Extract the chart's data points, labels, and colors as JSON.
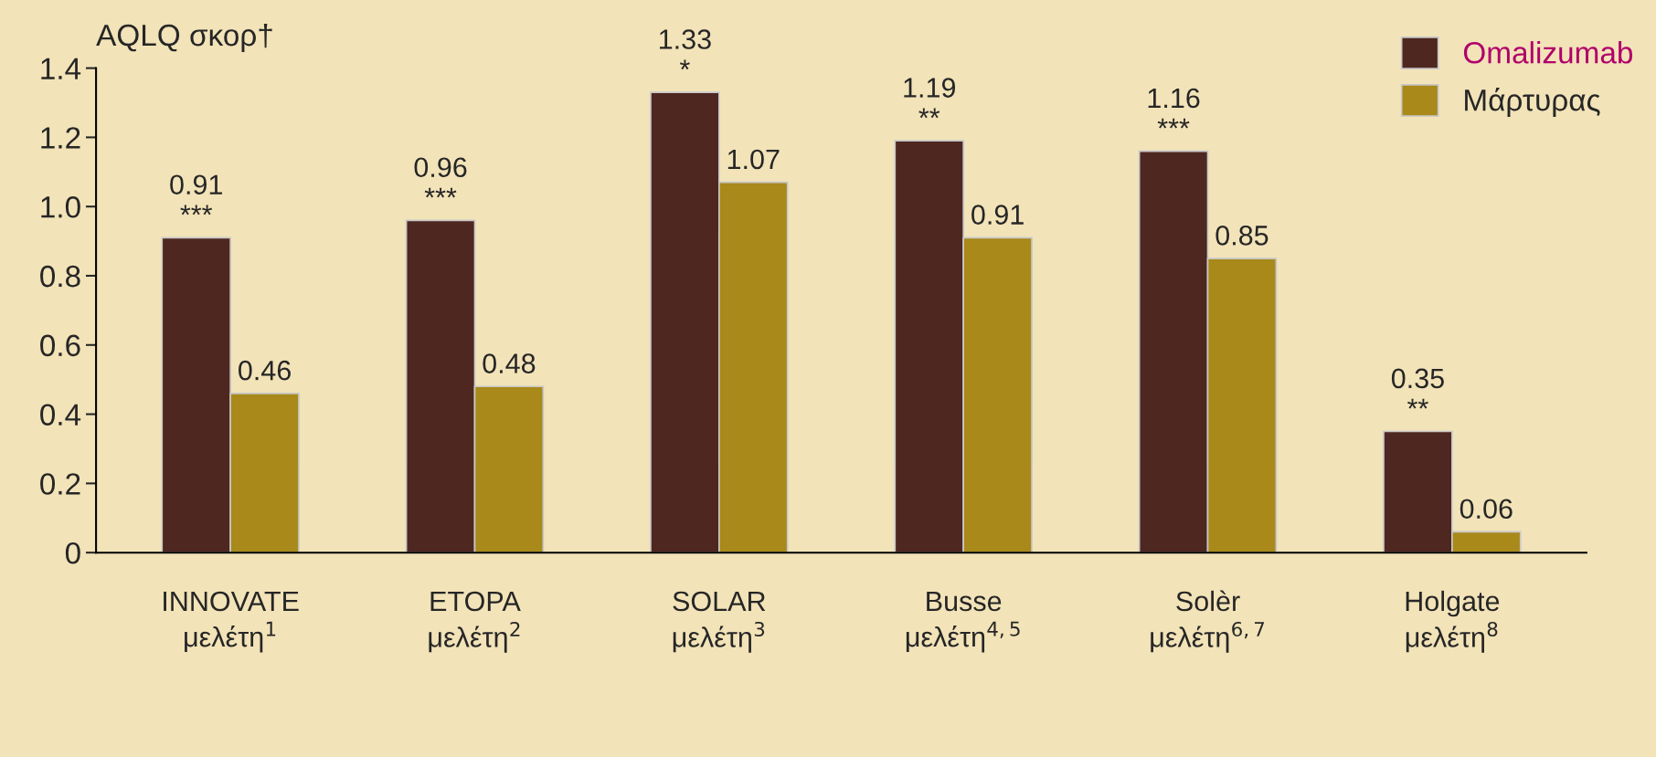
{
  "chart_data": {
    "type": "bar",
    "ylabel": "AQLQ σκορ†",
    "categories": [
      "INNOVATE\nμελέτη$^{1}$",
      "ETOPA\nμελέτη$^{2}$",
      "SOLAR\nμελέτη$^{3}$",
      "Busse\nμελέτη$^{4,5}$",
      "Solèr\nμελέτη$^{6,7}$",
      "Holgate\nμελέτη$^{8}$"
    ],
    "series": [
      {
        "name": "Omalizumab",
        "color": "#4e2720",
        "values": [
          0.91,
          0.96,
          1.33,
          1.19,
          1.16,
          0.35
        ],
        "value_labels": [
          "0.91\n***",
          "0.96\n***",
          "1.33\n*",
          "1.19\n**",
          "1.16\n***",
          "0.35\n**"
        ]
      },
      {
        "name": "Μάρτυρας",
        "color": "#a8891a",
        "values": [
          0.46,
          0.48,
          1.07,
          0.91,
          0.85,
          0.06
        ],
        "value_labels": [
          "0.46",
          "0.48",
          "1.07",
          "0.91",
          "0.85",
          "0.06"
        ]
      }
    ],
    "ylim": [
      0,
      1.4
    ],
    "yticks": [
      0,
      0.2,
      0.4,
      0.6,
      0.8,
      {
        "value": 1,
        "label": "1.0"
      },
      1.2,
      1.4
    ],
    "legend": "top right",
    "grid": false
  }
}
